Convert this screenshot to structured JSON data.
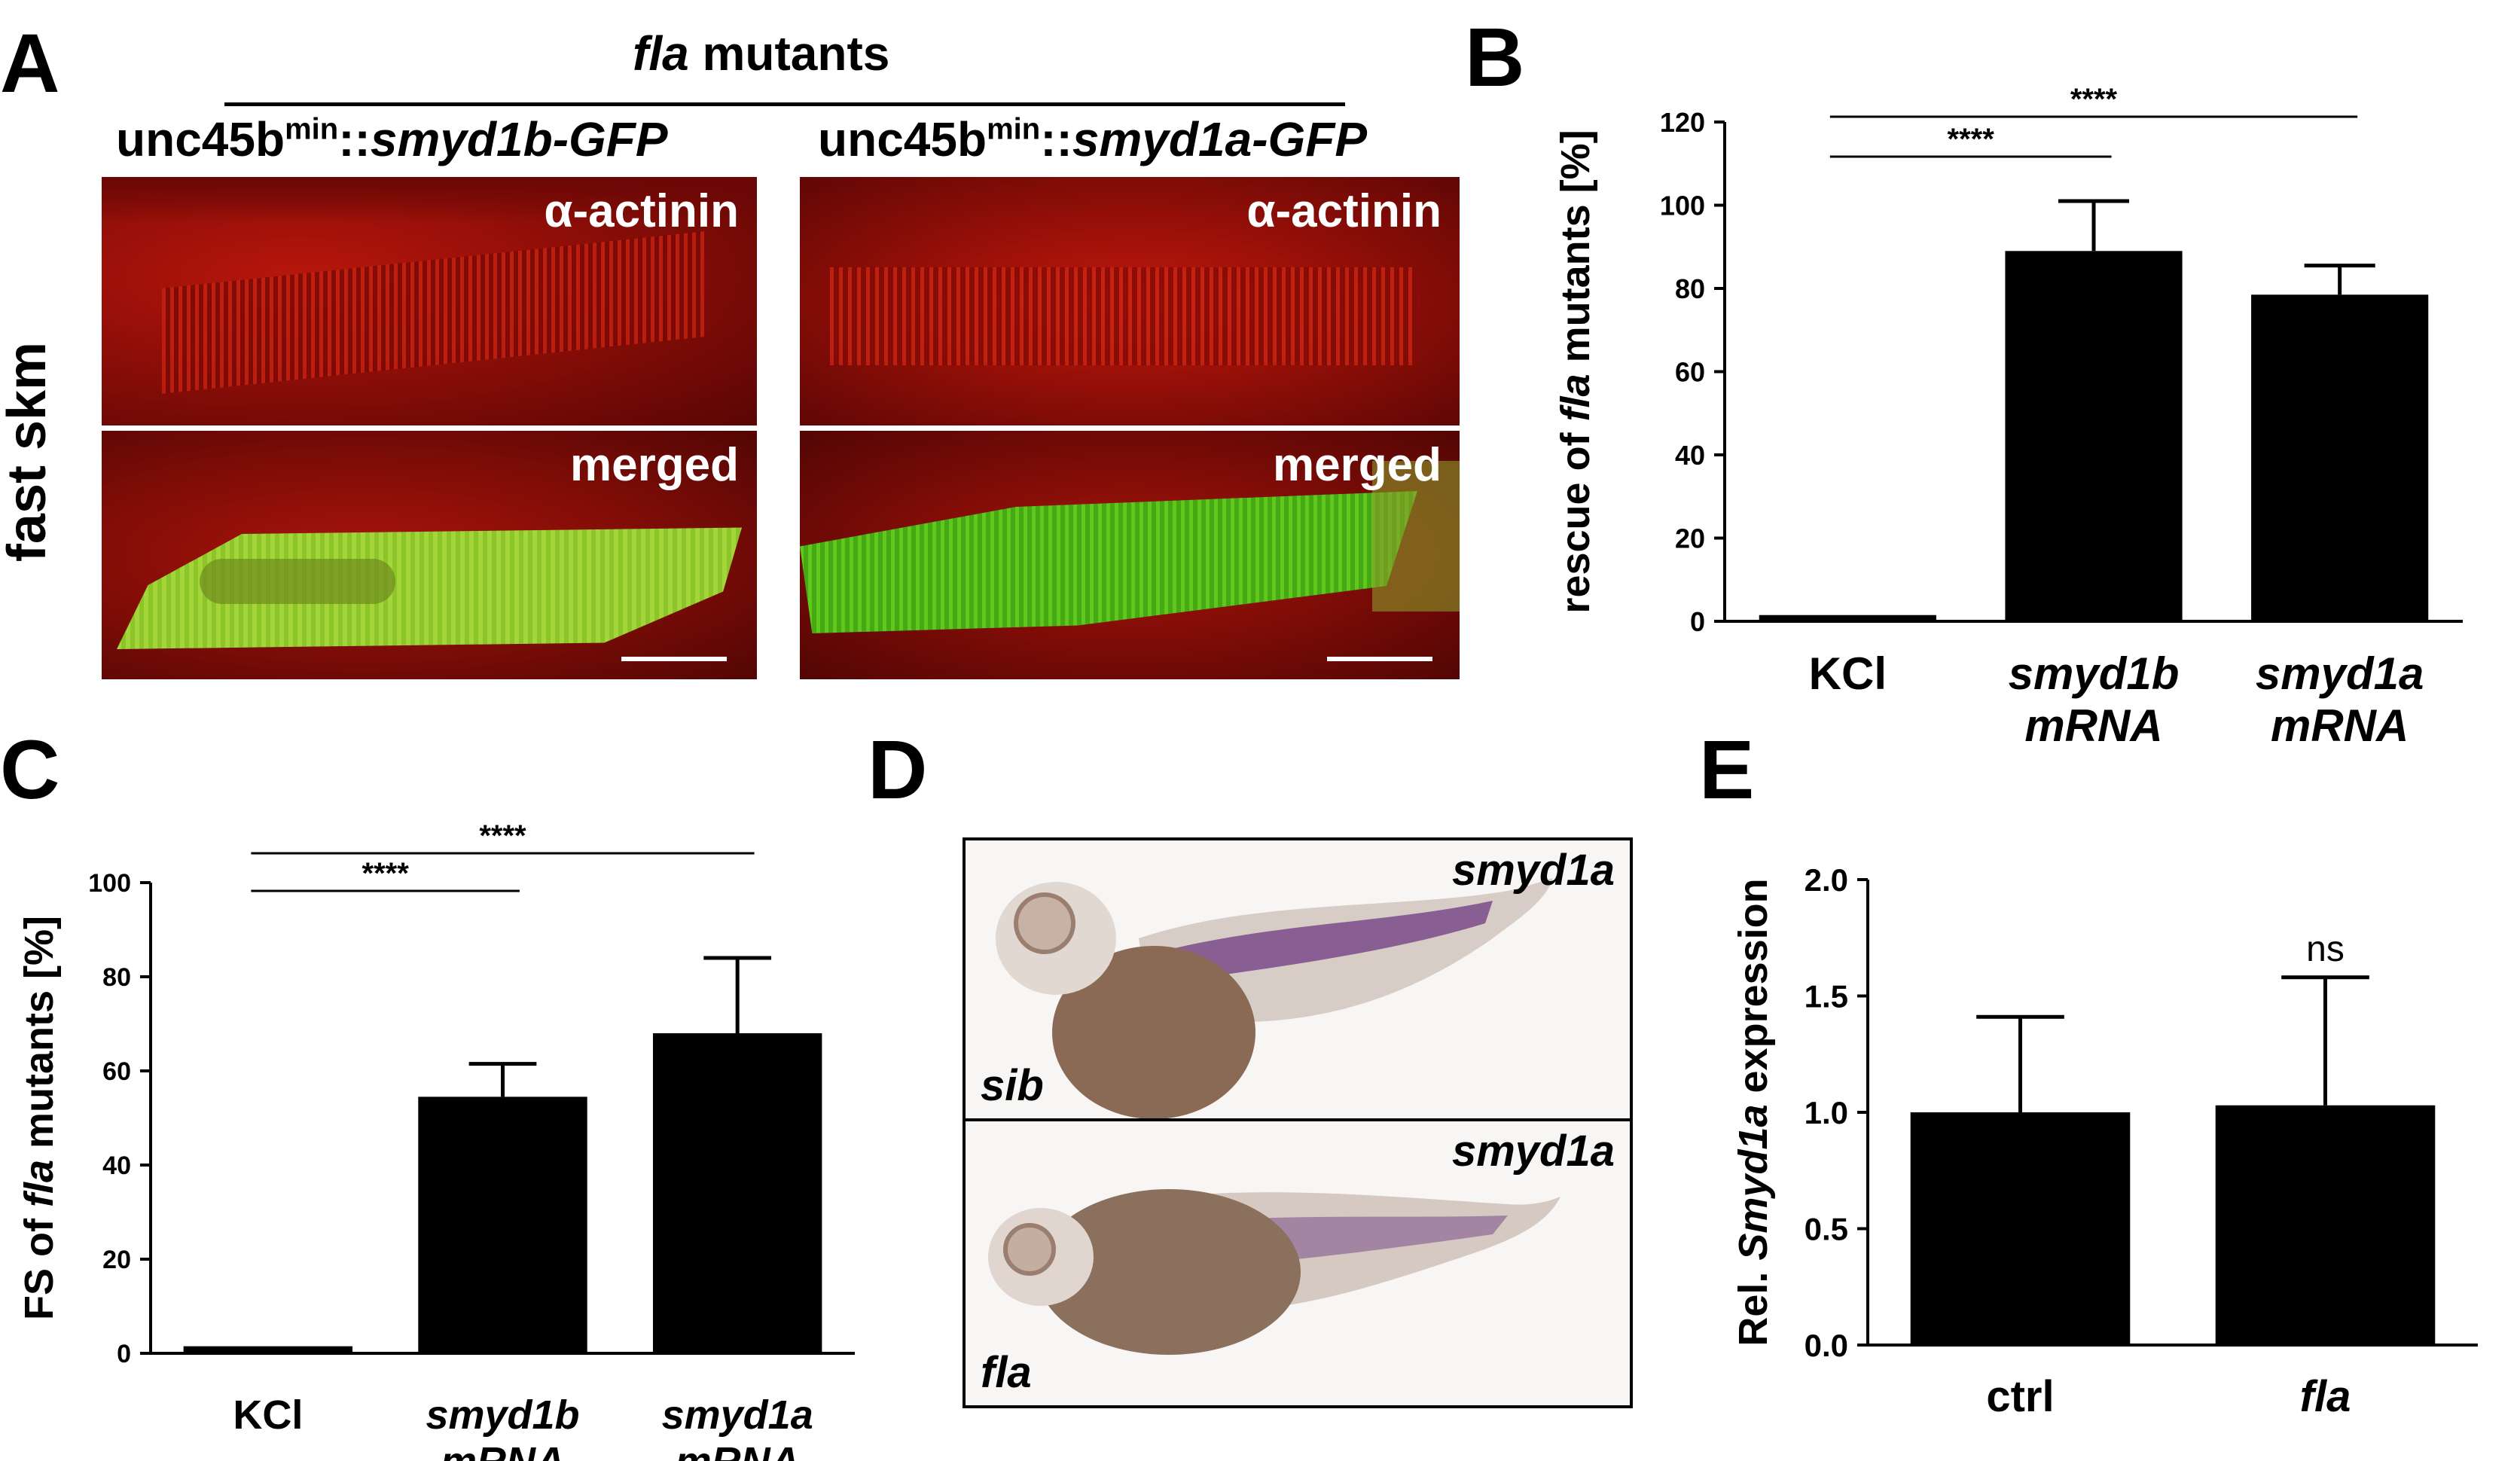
{
  "panel_labels": {
    "a": "A",
    "b": "B",
    "c": "C",
    "d": "D",
    "e": "E"
  },
  "panel_a": {
    "group_header_italic": "fla",
    "group_header_rest": " mutants",
    "col1": {
      "prefix": "unc45b",
      "sup": "min",
      "sep": "::",
      "gene": "smyd1b-GFP"
    },
    "col2": {
      "prefix": "unc45b",
      "sup": "min",
      "sep": "::",
      "gene": "smyd1a-GFP"
    },
    "row_label": "fast skm",
    "tile_top_label": "α-actinin",
    "tile_bottom_label": "merged",
    "colors": {
      "red_channel": "#a0100a",
      "green_channel": "#8ed02a"
    }
  },
  "panel_d": {
    "gene_label": "smyd1a",
    "top_label": "sib",
    "bottom_label": "fla",
    "colors": {
      "stain": "#7a4a8a",
      "yolk": "#8a6a55"
    }
  },
  "chart_data": [
    {
      "panel": "B",
      "type": "bar",
      "categories": [
        [
          "KCl"
        ],
        [
          "smyd1b",
          "mRNA"
        ],
        [
          "smyd1a",
          "mRNA"
        ]
      ],
      "category_italic": [
        false,
        true,
        true
      ],
      "values": [
        1.5,
        89,
        78.5
      ],
      "errors": [
        0,
        12,
        7
      ],
      "ylabel_parts": [
        "rescue of ",
        "fla",
        " mutants [%]"
      ],
      "ylim": [
        0,
        120
      ],
      "yticks": [
        0,
        20,
        40,
        60,
        80,
        100,
        120
      ],
      "ytick_labels": [
        "0",
        "20",
        "40",
        "60",
        "80",
        "100",
        "120"
      ],
      "significance": [
        {
          "from": 0,
          "to": 1,
          "label": "****"
        },
        {
          "from": 0,
          "to": 2,
          "label": "****"
        }
      ]
    },
    {
      "panel": "C",
      "type": "bar",
      "categories": [
        [
          "KCl"
        ],
        [
          "smyd1b",
          "mRNA"
        ],
        [
          "smyd1a",
          "mRNA"
        ]
      ],
      "category_italic": [
        false,
        true,
        true
      ],
      "values": [
        1.5,
        54.5,
        68
      ],
      "errors": [
        0,
        7,
        16
      ],
      "ylabel_parts": [
        "FS of ",
        "fla",
        " mutants [%]"
      ],
      "ylim": [
        0,
        100
      ],
      "yticks": [
        0,
        20,
        40,
        60,
        80,
        100
      ],
      "ytick_labels": [
        "0",
        "20",
        "40",
        "60",
        "80",
        "100"
      ],
      "significance": [
        {
          "from": 0,
          "to": 1,
          "label": "****"
        },
        {
          "from": 0,
          "to": 2,
          "label": "****"
        }
      ]
    },
    {
      "panel": "E",
      "type": "bar",
      "categories": [
        [
          "ctrl"
        ],
        [
          "fla"
        ]
      ],
      "category_italic": [
        false,
        true
      ],
      "values": [
        1.0,
        1.03
      ],
      "errors": [
        0.41,
        0.55
      ],
      "ylabel_parts": [
        "Rel. ",
        "Smyd1a",
        " expression"
      ],
      "ylim": [
        0,
        2.0
      ],
      "yticks": [
        0,
        0.5,
        1.0,
        1.5,
        2.0
      ],
      "ytick_labels": [
        "0.0",
        "0.5",
        "1.0",
        "1.5",
        "2.0"
      ],
      "annotations": [
        {
          "bar": 1,
          "label": "ns"
        }
      ]
    }
  ]
}
